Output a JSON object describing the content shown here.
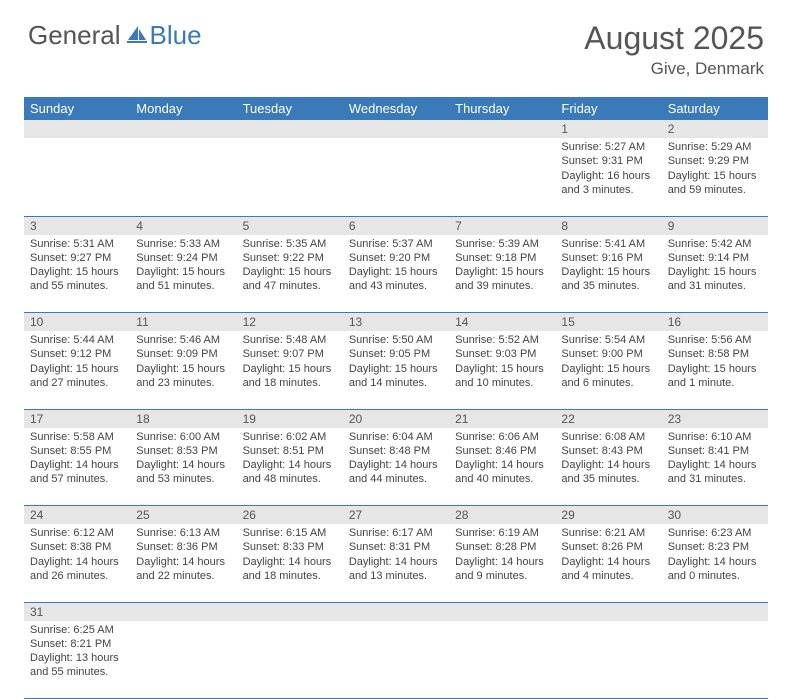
{
  "logo": {
    "part1": "General",
    "part2": "Blue"
  },
  "title": "August 2025",
  "location": "Give, Denmark",
  "colors": {
    "header_bg": "#3a7ab8",
    "header_text": "#ffffff",
    "daynum_bg": "#e6e6e6",
    "border": "#3a7ab8",
    "body_text": "#444444",
    "title_text": "#555555"
  },
  "dayHeaders": [
    "Sunday",
    "Monday",
    "Tuesday",
    "Wednesday",
    "Thursday",
    "Friday",
    "Saturday"
  ],
  "weeks": [
    [
      null,
      null,
      null,
      null,
      null,
      {
        "n": "1",
        "sr": "5:27 AM",
        "ss": "9:31 PM",
        "dl": "16 hours and 3 minutes."
      },
      {
        "n": "2",
        "sr": "5:29 AM",
        "ss": "9:29 PM",
        "dl": "15 hours and 59 minutes."
      }
    ],
    [
      {
        "n": "3",
        "sr": "5:31 AM",
        "ss": "9:27 PM",
        "dl": "15 hours and 55 minutes."
      },
      {
        "n": "4",
        "sr": "5:33 AM",
        "ss": "9:24 PM",
        "dl": "15 hours and 51 minutes."
      },
      {
        "n": "5",
        "sr": "5:35 AM",
        "ss": "9:22 PM",
        "dl": "15 hours and 47 minutes."
      },
      {
        "n": "6",
        "sr": "5:37 AM",
        "ss": "9:20 PM",
        "dl": "15 hours and 43 minutes."
      },
      {
        "n": "7",
        "sr": "5:39 AM",
        "ss": "9:18 PM",
        "dl": "15 hours and 39 minutes."
      },
      {
        "n": "8",
        "sr": "5:41 AM",
        "ss": "9:16 PM",
        "dl": "15 hours and 35 minutes."
      },
      {
        "n": "9",
        "sr": "5:42 AM",
        "ss": "9:14 PM",
        "dl": "15 hours and 31 minutes."
      }
    ],
    [
      {
        "n": "10",
        "sr": "5:44 AM",
        "ss": "9:12 PM",
        "dl": "15 hours and 27 minutes."
      },
      {
        "n": "11",
        "sr": "5:46 AM",
        "ss": "9:09 PM",
        "dl": "15 hours and 23 minutes."
      },
      {
        "n": "12",
        "sr": "5:48 AM",
        "ss": "9:07 PM",
        "dl": "15 hours and 18 minutes."
      },
      {
        "n": "13",
        "sr": "5:50 AM",
        "ss": "9:05 PM",
        "dl": "15 hours and 14 minutes."
      },
      {
        "n": "14",
        "sr": "5:52 AM",
        "ss": "9:03 PM",
        "dl": "15 hours and 10 minutes."
      },
      {
        "n": "15",
        "sr": "5:54 AM",
        "ss": "9:00 PM",
        "dl": "15 hours and 6 minutes."
      },
      {
        "n": "16",
        "sr": "5:56 AM",
        "ss": "8:58 PM",
        "dl": "15 hours and 1 minute."
      }
    ],
    [
      {
        "n": "17",
        "sr": "5:58 AM",
        "ss": "8:55 PM",
        "dl": "14 hours and 57 minutes."
      },
      {
        "n": "18",
        "sr": "6:00 AM",
        "ss": "8:53 PM",
        "dl": "14 hours and 53 minutes."
      },
      {
        "n": "19",
        "sr": "6:02 AM",
        "ss": "8:51 PM",
        "dl": "14 hours and 48 minutes."
      },
      {
        "n": "20",
        "sr": "6:04 AM",
        "ss": "8:48 PM",
        "dl": "14 hours and 44 minutes."
      },
      {
        "n": "21",
        "sr": "6:06 AM",
        "ss": "8:46 PM",
        "dl": "14 hours and 40 minutes."
      },
      {
        "n": "22",
        "sr": "6:08 AM",
        "ss": "8:43 PM",
        "dl": "14 hours and 35 minutes."
      },
      {
        "n": "23",
        "sr": "6:10 AM",
        "ss": "8:41 PM",
        "dl": "14 hours and 31 minutes."
      }
    ],
    [
      {
        "n": "24",
        "sr": "6:12 AM",
        "ss": "8:38 PM",
        "dl": "14 hours and 26 minutes."
      },
      {
        "n": "25",
        "sr": "6:13 AM",
        "ss": "8:36 PM",
        "dl": "14 hours and 22 minutes."
      },
      {
        "n": "26",
        "sr": "6:15 AM",
        "ss": "8:33 PM",
        "dl": "14 hours and 18 minutes."
      },
      {
        "n": "27",
        "sr": "6:17 AM",
        "ss": "8:31 PM",
        "dl": "14 hours and 13 minutes."
      },
      {
        "n": "28",
        "sr": "6:19 AM",
        "ss": "8:28 PM",
        "dl": "14 hours and 9 minutes."
      },
      {
        "n": "29",
        "sr": "6:21 AM",
        "ss": "8:26 PM",
        "dl": "14 hours and 4 minutes."
      },
      {
        "n": "30",
        "sr": "6:23 AM",
        "ss": "8:23 PM",
        "dl": "14 hours and 0 minutes."
      }
    ],
    [
      {
        "n": "31",
        "sr": "6:25 AM",
        "ss": "8:21 PM",
        "dl": "13 hours and 55 minutes."
      },
      null,
      null,
      null,
      null,
      null,
      null
    ]
  ],
  "labels": {
    "sunrise": "Sunrise:",
    "sunset": "Sunset:",
    "daylight": "Daylight:"
  }
}
